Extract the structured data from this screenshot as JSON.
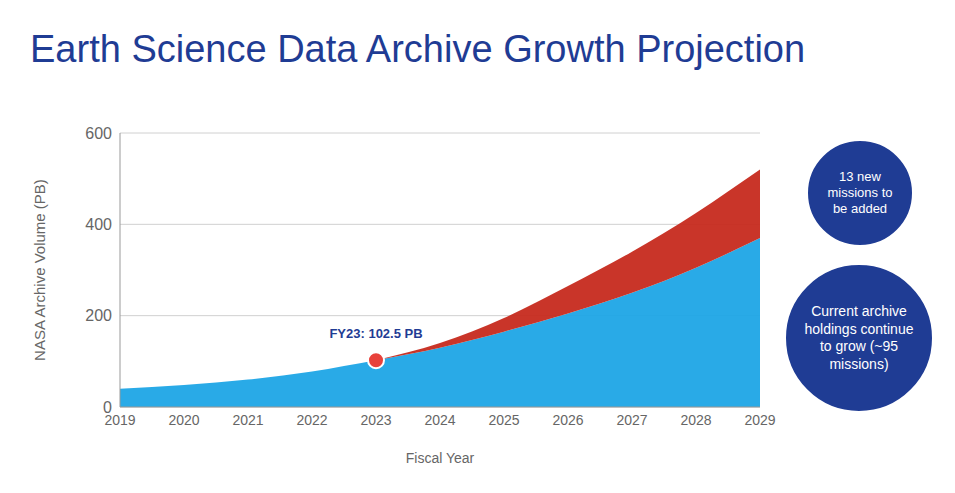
{
  "chart_data": {
    "type": "area",
    "title": "Earth Science Data Archive Growth Projection",
    "x_label": "Fiscal Year",
    "y_label": "NASA Archive Volume (PB)",
    "x": [
      2019,
      2020,
      2021,
      2022,
      2023,
      2024,
      2025,
      2026,
      2027,
      2028,
      2029
    ],
    "series": [
      {
        "name": "Current archive holdings continue to grow (~95 missions)",
        "color": "#1ea5e6",
        "values": [
          40,
          48,
          60,
          78,
          102.5,
          130,
          165,
          205,
          250,
          305,
          370
        ]
      },
      {
        "name": "13 new missions to be added",
        "color": "#c62a1d",
        "values": [
          null,
          null,
          null,
          null,
          0,
          10,
          30,
          60,
          90,
          120,
          150
        ]
      }
    ],
    "stacked": true,
    "xlim": [
      2019,
      2029
    ],
    "xticks": [
      2019,
      2020,
      2021,
      2022,
      2023,
      2024,
      2025,
      2026,
      2027,
      2028,
      2029
    ],
    "ylim": [
      0,
      600
    ],
    "yticks": [
      0,
      200,
      400,
      600
    ],
    "grid": true,
    "annotations": [
      {
        "text": "FY23: 102.5 PB",
        "x": 2023,
        "y": 102.5,
        "color": "#e8413b"
      }
    ]
  }
}
